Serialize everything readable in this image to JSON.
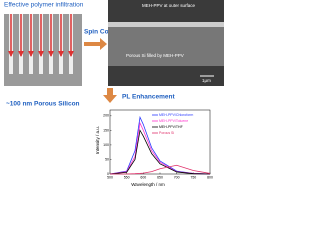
{
  "header": {
    "infiltration": "Effective polymer infiltration",
    "spin": "Spin Coating",
    "porous": "~100 nm Porous Silicon",
    "pl": "PL Enhancement"
  },
  "sem": {
    "outer": "MEH-PPV at outer surface",
    "filled": "Porous Si filled by MEH-PPV",
    "scale": "1μm"
  },
  "chart_data": {
    "type": "line",
    "xlabel": "Wavelength / nm",
    "ylabel": "Intensity / a.u.",
    "x": [
      500,
      550,
      575,
      590,
      600,
      625,
      650,
      700,
      750,
      800
    ],
    "series": [
      {
        "name": "MEH-PPV/Chloroform",
        "color": "#2b3bff",
        "values": [
          0,
          10,
          80,
          195,
          170,
          90,
          45,
          10,
          2,
          0
        ]
      },
      {
        "name": "MEH-PPV/Toluene",
        "color": "#ff33cc",
        "values": [
          0,
          8,
          60,
          175,
          150,
          80,
          40,
          8,
          2,
          0
        ]
      },
      {
        "name": "MEH-PPV/THF",
        "color": "#000000",
        "values": [
          0,
          6,
          50,
          150,
          130,
          70,
          35,
          7,
          1,
          0
        ]
      },
      {
        "name": "Porous Si",
        "color": "#e0306a",
        "values": [
          0,
          0,
          1,
          2,
          3,
          8,
          18,
          30,
          12,
          2
        ]
      }
    ],
    "xlim": [
      500,
      800
    ],
    "xticks": [
      500,
      550,
      600,
      650,
      700,
      750,
      800
    ],
    "ylim": [
      0,
      220
    ],
    "yticks": [
      0,
      50,
      100,
      150,
      200
    ]
  }
}
